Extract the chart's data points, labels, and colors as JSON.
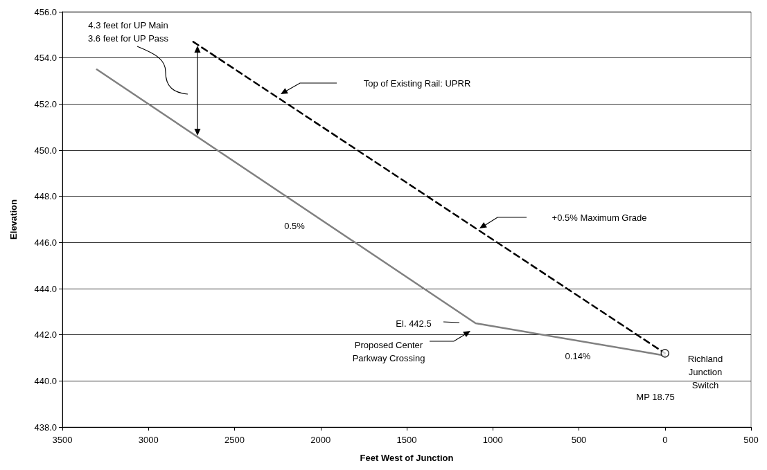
{
  "chart_data": {
    "type": "line",
    "xlabel": "Feet West of Junction",
    "ylabel": "Elevation",
    "xlim": [
      3500,
      -500
    ],
    "xticks": [
      3500,
      3000,
      2500,
      2000,
      1500,
      1000,
      500,
      0,
      {
        "value": -500,
        "label": "500"
      }
    ],
    "ylim": [
      438,
      456
    ],
    "yticks": [
      {
        "value": 438,
        "label": "438.0"
      },
      {
        "value": 440,
        "label": "440.0"
      },
      {
        "value": 442,
        "label": "442.0"
      },
      {
        "value": 444,
        "label": "444.0"
      },
      {
        "value": 446,
        "label": "446.0"
      },
      {
        "value": 448,
        "label": "448.0"
      },
      {
        "value": 450,
        "label": "450.0"
      },
      {
        "value": 452,
        "label": "452.0"
      },
      {
        "value": 454,
        "label": "454.0"
      },
      {
        "value": 456,
        "label": "456.0"
      }
    ],
    "grid": "y",
    "series": [
      {
        "color": "#808080",
        "x": [
          3300,
          1100,
          0
        ],
        "values": [
          453.5,
          442.5,
          441.1
        ],
        "line_style": "solid",
        "marker": "none"
      },
      {
        "color": "#000000",
        "x": [
          2740,
          0
        ],
        "values": [
          454.7,
          441.2
        ],
        "line_style": "dashed",
        "marker": "none"
      },
      {
        "type": "scatter",
        "color": "#000000",
        "x": [
          0
        ],
        "values": [
          441.2
        ],
        "marker": "circle"
      }
    ],
    "annotations": [
      "4.3 feet for UP Main\n3.6 feet for UP Pass",
      "Top of Existing Rail: UPRR",
      "+0.5% Maximum Grade",
      "0.5%",
      "El. 442.5",
      "Proposed Center\nParkway Crossing",
      "0.14%",
      "Richland\nJunction\nSwitch",
      "MP 18.75"
    ]
  }
}
